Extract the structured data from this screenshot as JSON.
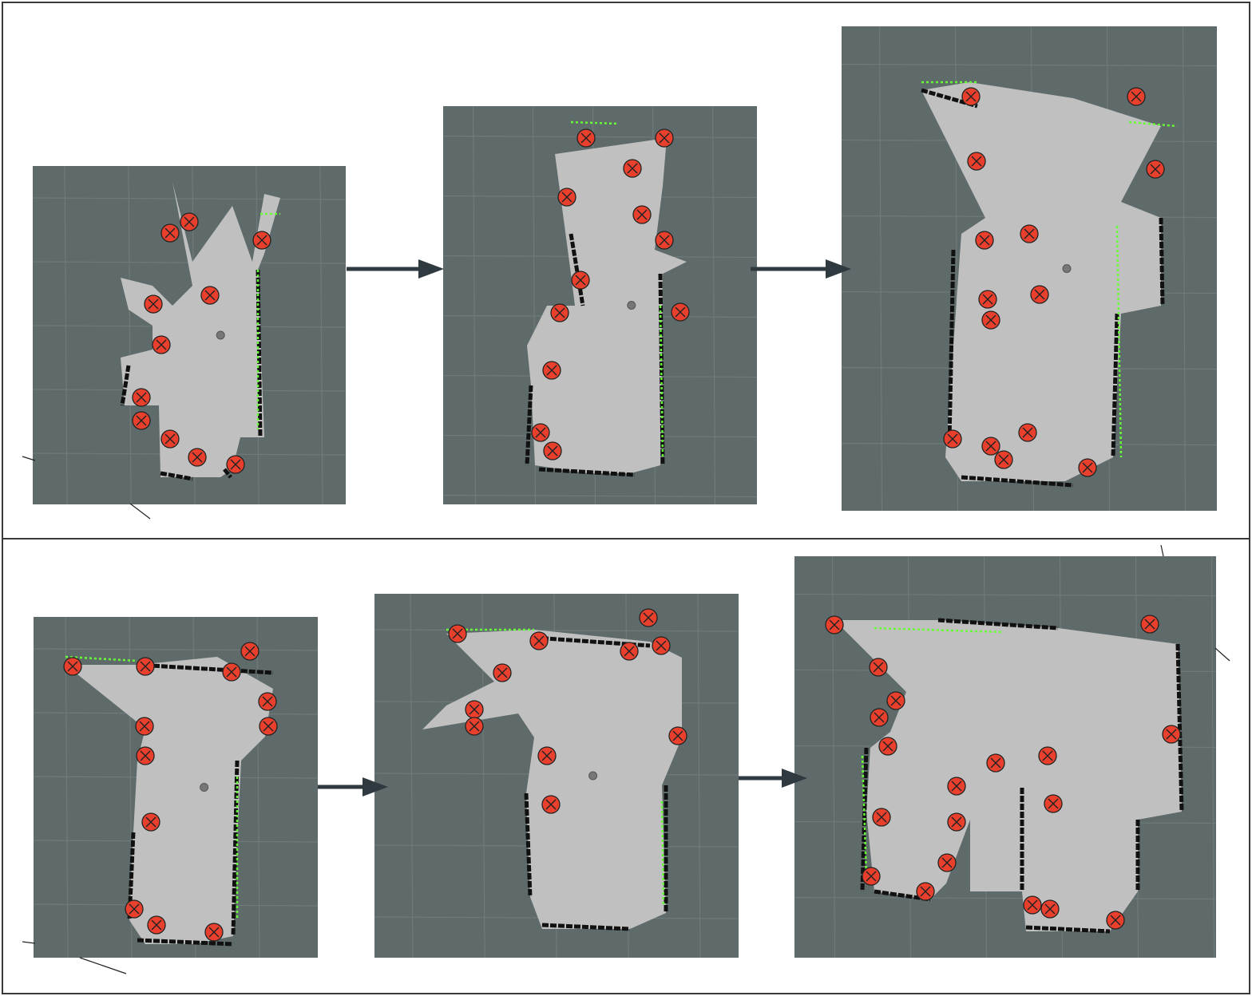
{
  "figure": {
    "rows": [
      {
        "stages": [
          {
            "frontier_markers": 12
          },
          {
            "frontier_markers": 12
          },
          {
            "frontier_markers": 14
          }
        ]
      },
      {
        "stages": [
          {
            "frontier_markers": 12
          },
          {
            "frontier_markers": 11
          },
          {
            "frontier_markers": 20
          }
        ]
      }
    ],
    "legend_colors": {
      "background": "#5f6b6b",
      "grid": "#6f7b7b",
      "free_space": "#c0c0c0",
      "obstacle": "#111111",
      "laser_scan": "#66ff33",
      "frontier_marker_fill": "#e8402c",
      "arrow": "#2e3a40"
    },
    "icons": {
      "frontier": "circle-x-icon",
      "transition": "arrow-right-icon"
    }
  }
}
